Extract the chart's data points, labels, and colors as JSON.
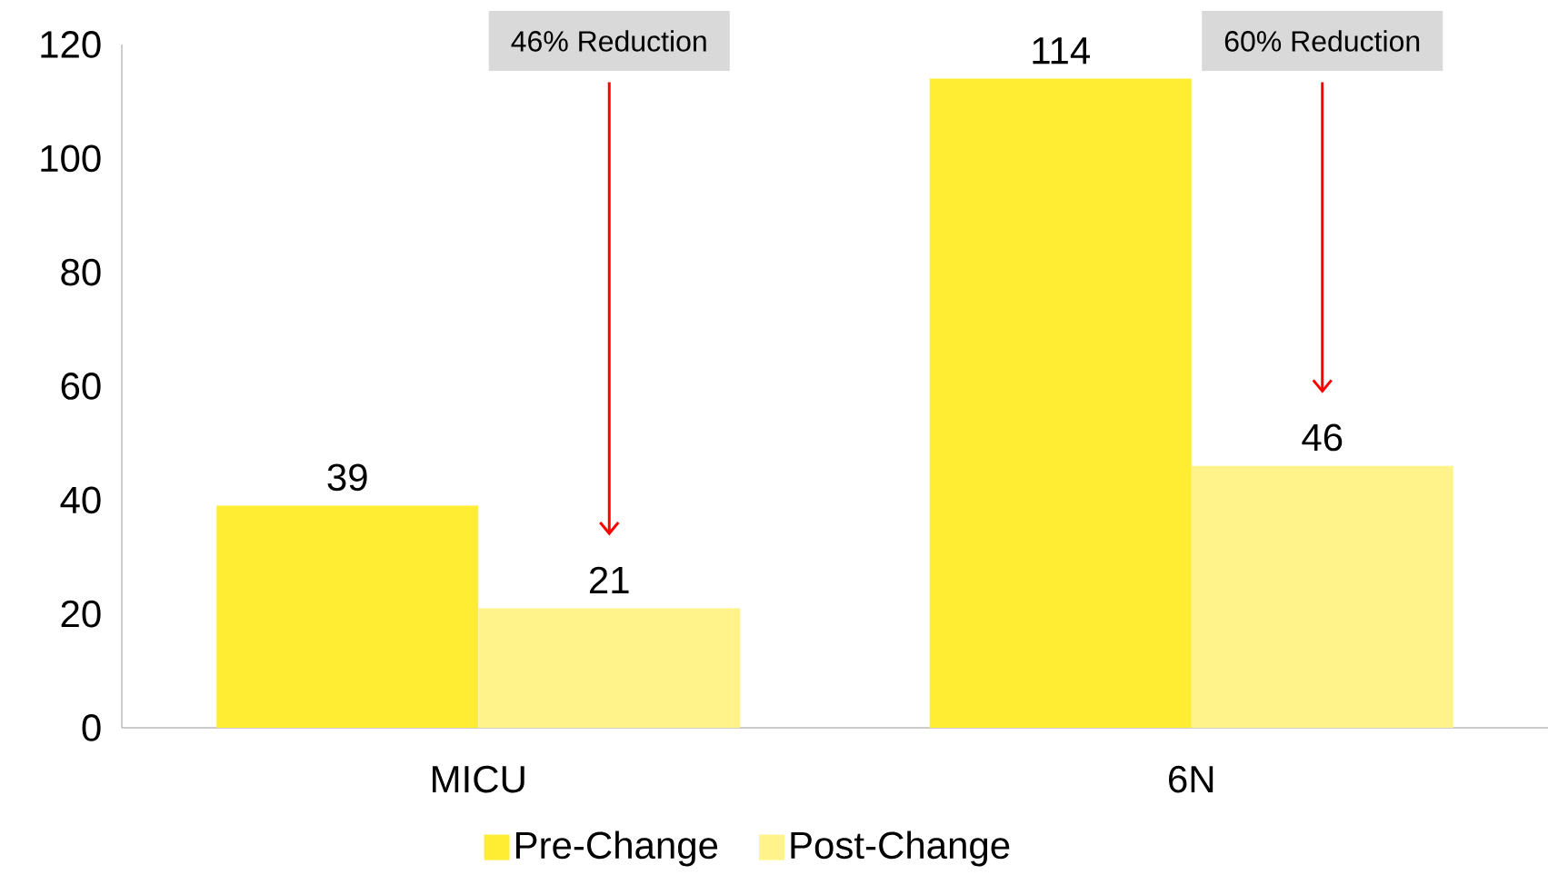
{
  "chart_data": {
    "type": "bar",
    "categories": [
      "MICU",
      "6N"
    ],
    "series": [
      {
        "name": "Pre-Change",
        "color": "#ffed33",
        "values": [
          39,
          114
        ]
      },
      {
        "name": "Post-Change",
        "color": "#fff38a",
        "values": [
          21,
          46
        ]
      }
    ],
    "ylim": [
      0,
      120
    ],
    "yticks": [
      0,
      20,
      40,
      60,
      80,
      100,
      120
    ],
    "data_labels": true,
    "legend": "bottom",
    "grid": false,
    "annotations": [
      "46% Reduction",
      "60% Reduction"
    ]
  }
}
